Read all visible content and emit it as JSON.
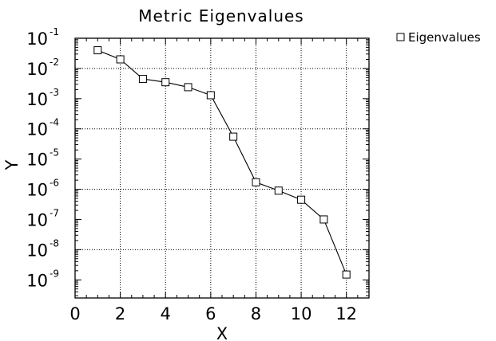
{
  "chart_data": {
    "type": "line",
    "title": "Metric Eigenvalues",
    "xlabel": "X",
    "ylabel": "Y",
    "x_scale": "linear",
    "y_scale": "log",
    "xlim": [
      0,
      13
    ],
    "ylim_exponent": [
      -9.6,
      -1
    ],
    "x_ticks": [
      "0",
      "2",
      "4",
      "6",
      "8",
      "10",
      "12"
    ],
    "y_ticks": [
      {
        "base": "10",
        "exp": "-1"
      },
      {
        "base": "10",
        "exp": "-2"
      },
      {
        "base": "10",
        "exp": "-3"
      },
      {
        "base": "10",
        "exp": "-4"
      },
      {
        "base": "10",
        "exp": "-5"
      },
      {
        "base": "10",
        "exp": "-6"
      },
      {
        "base": "10",
        "exp": "-7"
      },
      {
        "base": "10",
        "exp": "-8"
      },
      {
        "base": "10",
        "exp": "-9"
      }
    ],
    "grid": true,
    "grid_style": "dotted",
    "legend_position": "right",
    "series": [
      {
        "name": "Eigenvalues",
        "marker": "square",
        "color": "#000000",
        "x": [
          1,
          2,
          3,
          4,
          5,
          6,
          7,
          8,
          9,
          10,
          11,
          12
        ],
        "y": [
          0.04,
          0.02,
          0.0045,
          0.0035,
          0.0024,
          0.0013,
          5.5e-05,
          1.7e-06,
          9e-07,
          4.5e-07,
          1e-07,
          1.5e-09
        ]
      }
    ]
  }
}
